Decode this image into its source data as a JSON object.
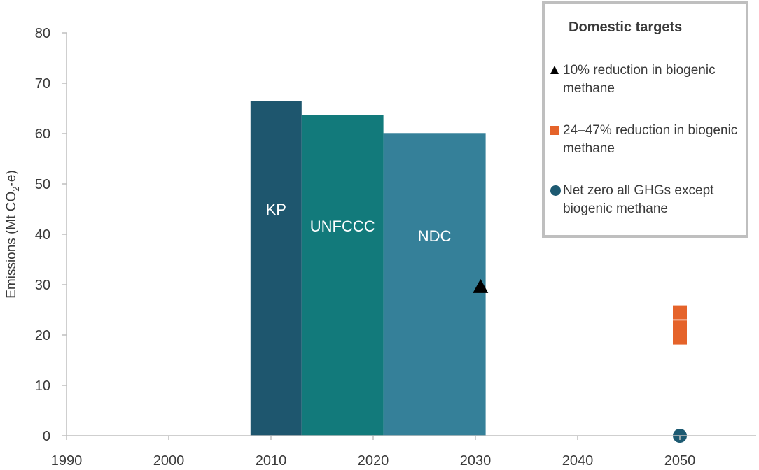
{
  "chart_data": {
    "type": "bar",
    "title": "",
    "xlabel": "",
    "ylabel_main": "Emissions (Mt CO",
    "ylabel_sub": "2",
    "ylabel_end": "-e)",
    "xlim": [
      1990,
      2055
    ],
    "ylim": [
      0,
      80
    ],
    "x_ticks": [
      "1990",
      "2000",
      "2010",
      "2020",
      "2030",
      "2040",
      "2050"
    ],
    "y_ticks": [
      "0",
      "10",
      "20",
      "30",
      "40",
      "50",
      "60",
      "70",
      "80"
    ],
    "grid": false,
    "bars": [
      {
        "label": "KP",
        "x_start": 2008,
        "x_end": 2013,
        "value": 66.4,
        "color": "#1e566e"
      },
      {
        "label": "UNFCCC",
        "x_start": 2013,
        "x_end": 2021,
        "value": 63.7,
        "color": "#127a7b"
      },
      {
        "label": "NDC",
        "x_start": 2021,
        "x_end": 2031,
        "value": 60.1,
        "color": "#358099"
      }
    ],
    "markers": [
      {
        "name": "10% reduction in biogenic methane",
        "shape": "triangle",
        "x": 2030.5,
        "y": 29.6,
        "color": "#000000"
      },
      {
        "name": "24–47% reduction in biogenic methane",
        "shape": "square",
        "x": 2050,
        "y": 24.5,
        "color": "#e5632a"
      },
      {
        "name": "24–47% reduction in biogenic methane",
        "shape": "square",
        "x": 2050,
        "y": 21.5,
        "color": "#e5632a"
      },
      {
        "name": "24–47% reduction in biogenic methane",
        "shape": "square",
        "x": 2050,
        "y": 19.5,
        "color": "#e5632a"
      },
      {
        "name": "Net zero all GHGs except biogenic methane",
        "shape": "circle",
        "x": 2050,
        "y": 0,
        "color": "#1d5a72"
      }
    ],
    "legend": {
      "title": "Domestic targets",
      "placement": "top-right",
      "entries": [
        {
          "label": "10% reduction in biogenic methane",
          "shape": "triangle",
          "color": "#000000"
        },
        {
          "label": "24–47% reduction in biogenic methane",
          "shape": "square",
          "color": "#e5632a"
        },
        {
          "label": "Net zero all GHGs except biogenic methane",
          "shape": "circle",
          "color": "#1d5a72"
        }
      ]
    }
  }
}
